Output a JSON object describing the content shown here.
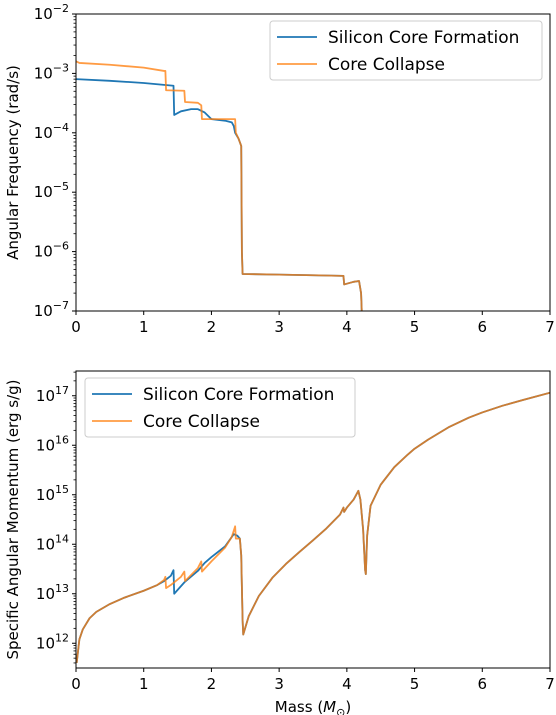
{
  "chart_data": [
    {
      "type": "line",
      "title": "",
      "xlabel": "",
      "ylabel": "Angular Frequency (rad/s)",
      "xlim": [
        0,
        7
      ],
      "ylim_log10": [
        -7,
        -2
      ],
      "yscale": "log",
      "grid": false,
      "legend_position": "top-right",
      "x_ticks": [
        "0",
        "1",
        "2",
        "3",
        "4",
        "5",
        "6",
        "7"
      ],
      "y_ticks": [
        {
          "base": "10",
          "exp": "−2"
        },
        {
          "base": "10",
          "exp": "−3"
        },
        {
          "base": "10",
          "exp": "−4"
        },
        {
          "base": "10",
          "exp": "−5"
        },
        {
          "base": "10",
          "exp": "−6"
        },
        {
          "base": "10",
          "exp": "−7"
        }
      ],
      "series": [
        {
          "name": "Silicon Core Formation",
          "color": "#1f77b4",
          "points": [
            [
              0,
              0.0008
            ],
            [
              0.5,
              0.00075
            ],
            [
              1.0,
              0.00069
            ],
            [
              1.3,
              0.00064
            ],
            [
              1.44,
              0.00062
            ],
            [
              1.45,
              0.0002
            ],
            [
              1.55,
              0.00023
            ],
            [
              1.7,
              0.00025
            ],
            [
              1.8,
              0.00025
            ],
            [
              1.9,
              0.00022
            ],
            [
              2.0,
              0.00017
            ],
            [
              2.2,
              0.00016
            ],
            [
              2.3,
              0.00015
            ],
            [
              2.33,
              0.00013
            ],
            [
              2.35,
              0.0001
            ],
            [
              2.4,
              8e-05
            ],
            [
              2.44,
              6e-05
            ],
            [
              2.45,
              1e-06
            ],
            [
              2.46,
              4.2e-07
            ],
            [
              3.0,
              4.1e-07
            ],
            [
              3.5,
              4e-07
            ],
            [
              3.95,
              3.9e-07
            ],
            [
              3.96,
              2.8e-07
            ],
            [
              4.1,
              3.1e-07
            ],
            [
              4.18,
              3.2e-07
            ],
            [
              4.21,
              2e-07
            ],
            [
              4.22,
              1e-07
            ]
          ]
        },
        {
          "name": "Core Collapse",
          "color": "#ff7f0e",
          "points": [
            [
              0,
              0.0016
            ],
            [
              0.05,
              0.0015
            ],
            [
              0.5,
              0.0014
            ],
            [
              1.0,
              0.00125
            ],
            [
              1.3,
              0.0011
            ],
            [
              1.32,
              0.0011
            ],
            [
              1.33,
              0.00052
            ],
            [
              1.6,
              0.00051
            ],
            [
              1.61,
              0.00033
            ],
            [
              1.8,
              0.00032
            ],
            [
              1.85,
              0.00029
            ],
            [
              1.86,
              0.00017
            ],
            [
              2.0,
              0.00017
            ],
            [
              2.35,
              0.00017
            ],
            [
              2.36,
              0.0001
            ],
            [
              2.4,
              8e-05
            ],
            [
              2.44,
              6e-05
            ],
            [
              2.45,
              1e-06
            ],
            [
              2.46,
              4.2e-07
            ],
            [
              3.0,
              4.1e-07
            ],
            [
              3.5,
              4e-07
            ],
            [
              3.95,
              3.9e-07
            ],
            [
              3.96,
              2.8e-07
            ],
            [
              4.1,
              3.1e-07
            ],
            [
              4.18,
              3.2e-07
            ],
            [
              4.21,
              2e-07
            ],
            [
              4.22,
              1e-07
            ]
          ]
        }
      ]
    },
    {
      "type": "line",
      "title": "",
      "xlabel": "Mass (M⊙)",
      "ylabel": "Specific Angular Momentum (erg s/g)",
      "xlim": [
        0,
        7
      ],
      "ylim_log10": [
        11.5,
        17.5
      ],
      "yscale": "log",
      "grid": false,
      "legend_position": "top-left",
      "x_ticks": [
        "0",
        "1",
        "2",
        "3",
        "4",
        "5",
        "6",
        "7"
      ],
      "y_ticks": [
        {
          "base": "10",
          "exp": "17"
        },
        {
          "base": "10",
          "exp": "16"
        },
        {
          "base": "10",
          "exp": "15"
        },
        {
          "base": "10",
          "exp": "14"
        },
        {
          "base": "10",
          "exp": "13"
        },
        {
          "base": "10",
          "exp": "12"
        }
      ],
      "series": [
        {
          "name": "Silicon Core Formation",
          "color": "#1f77b4",
          "points": [
            [
              0.01,
              400000000000.0
            ],
            [
              0.05,
              1200000000000.0
            ],
            [
              0.1,
              1900000000000.0
            ],
            [
              0.2,
              3200000000000.0
            ],
            [
              0.3,
              4300000000000.0
            ],
            [
              0.5,
              6200000000000.0
            ],
            [
              0.7,
              8200000000000.0
            ],
            [
              1.0,
              11500000000000.0
            ],
            [
              1.2,
              15000000000000.0
            ],
            [
              1.3,
              18000000000000.0
            ],
            [
              1.4,
              23000000000000.0
            ],
            [
              1.44,
              30000000000000.0
            ],
            [
              1.45,
              10000000000000.0
            ],
            [
              1.6,
              17000000000000.0
            ],
            [
              1.8,
              29000000000000.0
            ],
            [
              1.9,
              42000000000000.0
            ],
            [
              2.0,
              55000000000000.0
            ],
            [
              2.2,
              90000000000000.0
            ],
            [
              2.3,
              140000000000000.0
            ],
            [
              2.33,
              160000000000000.0
            ],
            [
              2.38,
              150000000000000.0
            ],
            [
              2.42,
              130000000000000.0
            ],
            [
              2.44,
              60000000000000.0
            ],
            [
              2.46,
              3000000000000.0
            ],
            [
              2.47,
              1500000000000.0
            ],
            [
              2.55,
              3500000000000.0
            ],
            [
              2.7,
              9000000000000.0
            ],
            [
              2.9,
              21000000000000.0
            ],
            [
              3.1,
              40000000000000.0
            ],
            [
              3.3,
              70000000000000.0
            ],
            [
              3.5,
              120000000000000.0
            ],
            [
              3.7,
              210000000000000.0
            ],
            [
              3.9,
              400000000000000.0
            ],
            [
              3.95,
              550000000000000.0
            ],
            [
              3.96,
              450000000000000.0
            ],
            [
              4.0,
              550000000000000.0
            ],
            [
              4.1,
              800000000000000.0
            ],
            [
              4.17,
              1200000000000000.0
            ],
            [
              4.2,
              800000000000000.0
            ],
            [
              4.24,
              200000000000000.0
            ],
            [
              4.27,
              30000000000000.0
            ],
            [
              4.28,
              25000000000000.0
            ],
            [
              4.3,
              150000000000000.0
            ],
            [
              4.35,
              600000000000000.0
            ],
            [
              4.5,
              1600000000000000.0
            ],
            [
              4.7,
              3600000000000000.0
            ],
            [
              4.9,
              6500000000000000.0
            ],
            [
              5.0,
              8500000000000000.0
            ],
            [
              5.2,
              1.3e+16
            ],
            [
              5.5,
              2.3e+16
            ],
            [
              5.8,
              3.6e+16
            ],
            [
              6.0,
              4.6e+16
            ],
            [
              6.3,
              6.3e+16
            ],
            [
              6.6,
              8.2e+16
            ],
            [
              7.0,
              1.15e+17
            ]
          ]
        },
        {
          "name": "Core Collapse",
          "color": "#ff7f0e",
          "points": [
            [
              0.01,
              400000000000.0
            ],
            [
              0.05,
              1200000000000.0
            ],
            [
              0.1,
              1900000000000.0
            ],
            [
              0.2,
              3200000000000.0
            ],
            [
              0.3,
              4300000000000.0
            ],
            [
              0.5,
              6200000000000.0
            ],
            [
              0.7,
              8200000000000.0
            ],
            [
              1.0,
              11500000000000.0
            ],
            [
              1.2,
              15000000000000.0
            ],
            [
              1.3,
              19000000000000.0
            ],
            [
              1.32,
              22000000000000.0
            ],
            [
              1.33,
              13000000000000.0
            ],
            [
              1.4,
              15000000000000.0
            ],
            [
              1.55,
              22000000000000.0
            ],
            [
              1.6,
              28000000000000.0
            ],
            [
              1.61,
              18000000000000.0
            ],
            [
              1.8,
              33000000000000.0
            ],
            [
              1.85,
              45000000000000.0
            ],
            [
              1.86,
              28000000000000.0
            ],
            [
              2.0,
              45000000000000.0
            ],
            [
              2.2,
              85000000000000.0
            ],
            [
              2.3,
              140000000000000.0
            ],
            [
              2.35,
              230000000000000.0
            ],
            [
              2.36,
              130000000000000.0
            ],
            [
              2.42,
              130000000000000.0
            ],
            [
              2.44,
              60000000000000.0
            ],
            [
              2.46,
              3000000000000.0
            ],
            [
              2.47,
              1500000000000.0
            ],
            [
              2.55,
              3500000000000.0
            ],
            [
              2.7,
              9000000000000.0
            ],
            [
              2.9,
              21000000000000.0
            ],
            [
              3.1,
              40000000000000.0
            ],
            [
              3.3,
              70000000000000.0
            ],
            [
              3.5,
              120000000000000.0
            ],
            [
              3.7,
              210000000000000.0
            ],
            [
              3.9,
              400000000000000.0
            ],
            [
              3.95,
              550000000000000.0
            ],
            [
              3.96,
              450000000000000.0
            ],
            [
              4.0,
              550000000000000.0
            ],
            [
              4.1,
              800000000000000.0
            ],
            [
              4.17,
              1200000000000000.0
            ],
            [
              4.2,
              800000000000000.0
            ],
            [
              4.24,
              200000000000000.0
            ],
            [
              4.27,
              30000000000000.0
            ],
            [
              4.28,
              25000000000000.0
            ],
            [
              4.3,
              150000000000000.0
            ],
            [
              4.35,
              600000000000000.0
            ],
            [
              4.5,
              1600000000000000.0
            ],
            [
              4.7,
              3600000000000000.0
            ],
            [
              4.9,
              6500000000000000.0
            ],
            [
              5.0,
              8500000000000000.0
            ],
            [
              5.2,
              1.3e+16
            ],
            [
              5.5,
              2.3e+16
            ],
            [
              5.8,
              3.6e+16
            ],
            [
              6.0,
              4.6e+16
            ],
            [
              6.3,
              6.3e+16
            ],
            [
              6.6,
              8.2e+16
            ],
            [
              7.0,
              1.15e+17
            ]
          ]
        }
      ]
    }
  ]
}
